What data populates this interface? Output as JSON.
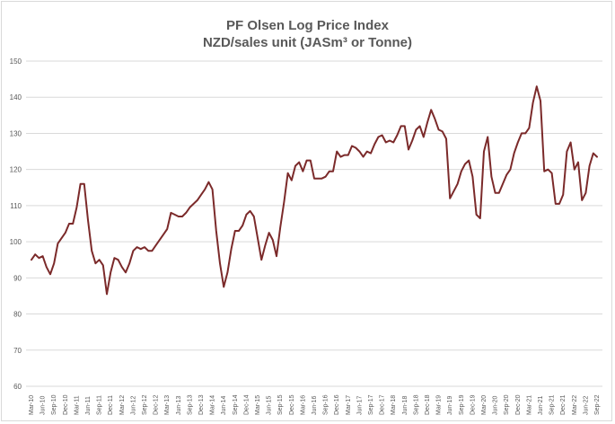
{
  "chart_data": {
    "type": "line",
    "title": "PF Olsen Log Price Index",
    "subtitle": "NZD/sales unit (JASm³ or Tonne)",
    "xlabel": "",
    "ylabel": "",
    "ylim": [
      60,
      150
    ],
    "yticks": [
      60,
      70,
      80,
      90,
      100,
      110,
      120,
      130,
      140,
      150
    ],
    "grid": "horizontal",
    "legend": "none",
    "line_color": "#7b2a2a",
    "x_tick_labels": [
      "Mar-10",
      "Jun-10",
      "Sep-10",
      "Dec-10",
      "Mar-11",
      "Jun-11",
      "Sep-11",
      "Dec-11",
      "Mar-12",
      "Jun-12",
      "Sep-12",
      "Dec-12",
      "Mar-13",
      "Jun-13",
      "Sep-13",
      "Dec-13",
      "Mar-14",
      "Jun-14",
      "Sep-14",
      "Dec-14",
      "Mar-15",
      "Jun-15",
      "Sep-15",
      "Dec-15",
      "Mar-16",
      "Jun-16",
      "Sep-16",
      "Dec-16",
      "Mar-17",
      "Jun-17",
      "Sep-17",
      "Dec-17",
      "Mar-18",
      "Jun-18",
      "Sep-18",
      "Dec-18",
      "Mar-19",
      "Jun-19",
      "Sep-19",
      "Dec-19",
      "Mar-20",
      "Jun-20",
      "Sep-20",
      "Dec-20",
      "Mar-21",
      "Jun-21",
      "Sep-21",
      "Dec-21",
      "Mar-22",
      "Jun-22",
      "Sep-22"
    ],
    "series": [
      {
        "values": [
          95,
          96.5,
          95.5,
          96,
          93,
          91,
          94,
          99.5,
          101,
          102.5,
          105,
          105,
          109.5,
          116,
          116,
          106,
          97.5,
          94,
          95,
          93.5,
          85.5,
          91.5,
          95.5,
          95,
          93,
          91.5,
          94,
          97.5,
          98.5,
          98,
          98.5,
          97.5,
          97.5,
          99,
          100.5,
          102,
          103.5,
          108,
          107.5,
          107,
          107,
          108,
          109.5,
          110.5,
          111.5,
          113,
          114.5,
          116.5,
          114.5,
          103,
          94,
          87.5,
          91.5,
          98,
          103,
          103,
          104.5,
          107.5,
          108.5,
          107,
          101,
          95,
          99,
          102.5,
          100.5,
          96,
          104,
          111,
          119,
          117,
          121,
          122,
          119.5,
          122.5,
          122.5,
          117.5,
          117.5,
          117.5,
          118,
          119.5,
          119.5,
          125,
          123.5,
          124,
          124,
          126.5,
          126,
          125,
          123.5,
          125,
          124.5,
          127,
          129,
          129.5,
          127.5,
          128,
          127.5,
          129.5,
          132,
          132,
          125.5,
          128,
          131,
          132,
          129,
          133,
          136.5,
          134,
          131,
          130.5,
          128.5,
          112,
          114,
          116,
          119.5,
          121.5,
          122.5,
          118,
          107.5,
          106.5,
          125,
          129,
          118,
          113.5,
          113.5,
          116,
          118.5,
          120,
          124.5,
          127.5,
          130,
          130,
          131.5,
          138.5,
          143,
          139,
          119.5,
          120,
          119,
          110.5,
          110.5,
          113,
          125,
          127.5,
          120,
          122,
          111.5,
          113.5,
          121,
          124.5,
          123.5
        ]
      }
    ]
  }
}
